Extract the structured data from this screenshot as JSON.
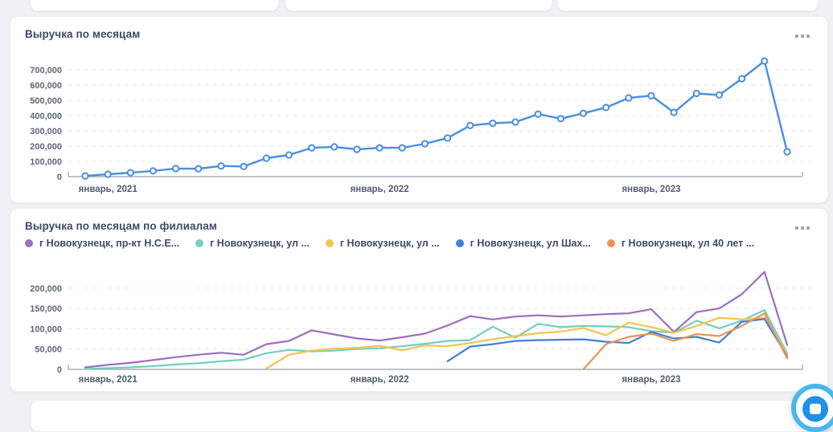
{
  "page": {
    "background": "#eff1f4"
  },
  "icons": {
    "card_menu": "ellipsis-icon",
    "chat": "chat-bubble-icon"
  },
  "chat_widget": {
    "ring_color": "#48b7ed",
    "bubble_color": "#1e90e6"
  },
  "chart_data": [
    {
      "type": "line",
      "title": "Выручка по месяцам",
      "legend_shown": false,
      "grid": "dashed-horizontal",
      "x_months": [
        "дек 2020",
        "янв 2021",
        "фев 2021",
        "мар 2021",
        "апр 2021",
        "май 2021",
        "июн 2021",
        "июл 2021",
        "авг 2021",
        "сен 2021",
        "окт 2021",
        "ноя 2021",
        "дек 2021",
        "янв 2022",
        "фев 2022",
        "мар 2022",
        "апр 2022",
        "май 2022",
        "июн 2022",
        "июл 2022",
        "авг 2022",
        "сен 2022",
        "окт 2022",
        "ноя 2022",
        "дек 2022",
        "янв 2023",
        "фев 2023",
        "мар 2023",
        "апр 2023",
        "май 2023",
        "июн 2023",
        "июл 2023"
      ],
      "x_axis_ticks": [
        {
          "index": 1,
          "label": "январь, 2021"
        },
        {
          "index": 13,
          "label": "январь, 2022"
        },
        {
          "index": 25,
          "label": "январь, 2023"
        }
      ],
      "ylim": [
        0,
        760000
      ],
      "y_ticks": [
        {
          "value": 0,
          "label": "0"
        },
        {
          "value": 100000,
          "label": "100,000"
        },
        {
          "value": 200000,
          "label": "200,000"
        },
        {
          "value": 300000,
          "label": "300,000"
        },
        {
          "value": 400000,
          "label": "400,000"
        },
        {
          "value": 500000,
          "label": "500,000"
        },
        {
          "value": 600000,
          "label": "600,000"
        },
        {
          "value": 700000,
          "label": "700,000"
        }
      ],
      "series": [
        {
          "name": "Выручка",
          "color": "#4a8fe0",
          "marker": "open-circle",
          "values": [
            5000,
            16000,
            26000,
            38000,
            53000,
            52000,
            70000,
            67000,
            121000,
            142000,
            189000,
            195000,
            179000,
            189000,
            189000,
            216000,
            253000,
            335000,
            350000,
            358000,
            410000,
            380000,
            415000,
            453000,
            516000,
            531000,
            421000,
            545000,
            535000,
            642000,
            758000,
            163000
          ]
        }
      ]
    },
    {
      "type": "line",
      "title": "Выручка по месяцам по филиалам",
      "legend_shown": true,
      "legend_position": "top",
      "grid": "dashed-horizontal",
      "x_months": [
        "дек 2020",
        "янв 2021",
        "фев 2021",
        "мар 2021",
        "апр 2021",
        "май 2021",
        "июн 2021",
        "июл 2021",
        "авг 2021",
        "сен 2021",
        "окт 2021",
        "ноя 2021",
        "дек 2021",
        "янв 2022",
        "фев 2022",
        "мар 2022",
        "апр 2022",
        "май 2022",
        "июн 2022",
        "июл 2022",
        "авг 2022",
        "сен 2022",
        "окт 2022",
        "ноя 2022",
        "дек 2022",
        "янв 2023",
        "фев 2023",
        "мар 2023",
        "апр 2023",
        "май 2023",
        "июн 2023",
        "июл 2023"
      ],
      "x_axis_ticks": [
        {
          "index": 1,
          "label": "январь, 2021"
        },
        {
          "index": 13,
          "label": "январь, 2022"
        },
        {
          "index": 25,
          "label": "январь, 2023"
        }
      ],
      "ylim": [
        0,
        250000
      ],
      "y_ticks": [
        {
          "value": 0,
          "label": "0"
        },
        {
          "value": 50000,
          "label": "50,000"
        },
        {
          "value": 100000,
          "label": "100,000"
        },
        {
          "value": 150000,
          "label": "150,000"
        },
        {
          "value": 200000,
          "label": "200,000"
        }
      ],
      "series": [
        {
          "name": "г Новокузнецк, пр-кт Н.С.Е...",
          "color": "#9b6ec0",
          "values": [
            5000,
            11000,
            16000,
            23000,
            30000,
            36000,
            41000,
            36000,
            62000,
            70000,
            96000,
            86000,
            76000,
            71000,
            79000,
            88000,
            108000,
            131000,
            123000,
            130000,
            133000,
            130000,
            133000,
            136000,
            138000,
            148000,
            92000,
            141000,
            150000,
            185000,
            240000,
            60000
          ]
        },
        {
          "name": "г Новокузнецк, ул ...",
          "color": "#74cdc4",
          "values": [
            1000,
            3000,
            5000,
            8000,
            12000,
            15000,
            20000,
            24000,
            40000,
            48000,
            44000,
            46000,
            50000,
            52000,
            57000,
            63000,
            70000,
            72000,
            105000,
            78000,
            112000,
            104000,
            107000,
            106000,
            104000,
            94000,
            90000,
            120000,
            101000,
            120000,
            146000,
            40000
          ]
        },
        {
          "name": "г Новокузнецк, ул ...",
          "color": "#f3c44d",
          "values": [
            null,
            null,
            null,
            null,
            null,
            null,
            null,
            null,
            2000,
            36000,
            46000,
            51000,
            53000,
            58000,
            47000,
            59000,
            57000,
            65000,
            74000,
            82000,
            89000,
            93000,
            102000,
            84000,
            115000,
            104000,
            90000,
            107000,
            127000,
            123000,
            127000,
            38000
          ]
        },
        {
          "name": "г Новокузнецк, ул Шах...",
          "color": "#4180d8",
          "values": [
            null,
            null,
            null,
            null,
            null,
            null,
            null,
            null,
            null,
            null,
            null,
            null,
            null,
            null,
            null,
            null,
            20000,
            56000,
            62000,
            70000,
            72000,
            73000,
            74000,
            68000,
            65000,
            92000,
            76000,
            80000,
            66000,
            117000,
            124000,
            32000
          ]
        },
        {
          "name": "г Новокузнецк, ул 40 лет ...",
          "color": "#ee9351",
          "values": [
            null,
            null,
            null,
            null,
            null,
            null,
            null,
            null,
            null,
            null,
            null,
            null,
            null,
            null,
            null,
            null,
            null,
            null,
            null,
            null,
            null,
            null,
            0,
            62000,
            80000,
            88000,
            70000,
            87000,
            82000,
            107000,
            138000,
            27000
          ]
        }
      ]
    }
  ]
}
